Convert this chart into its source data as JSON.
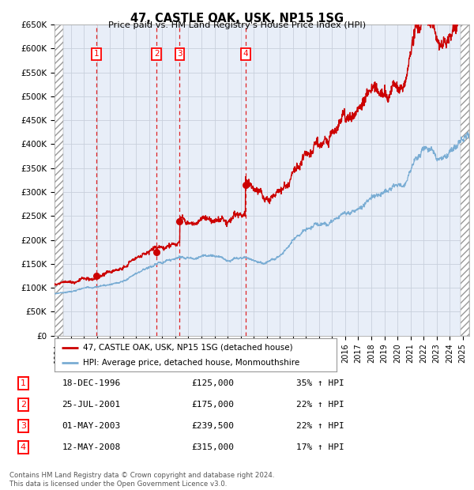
{
  "title": "47, CASTLE OAK, USK, NP15 1SG",
  "subtitle": "Price paid vs. HM Land Registry's House Price Index (HPI)",
  "legend_line1": "47, CASTLE OAK, USK, NP15 1SG (detached house)",
  "legend_line2": "HPI: Average price, detached house, Monmouthshire",
  "footer1": "Contains HM Land Registry data © Crown copyright and database right 2024.",
  "footer2": "This data is licensed under the Open Government Licence v3.0.",
  "transactions": [
    {
      "num": 1,
      "date": "18-DEC-1996",
      "price": "£125,000",
      "pct": "35% ↑ HPI"
    },
    {
      "num": 2,
      "date": "25-JUL-2001",
      "price": "£175,000",
      "pct": "22% ↑ HPI"
    },
    {
      "num": 3,
      "date": "01-MAY-2003",
      "price": "£239,500",
      "pct": "22% ↑ HPI"
    },
    {
      "num": 4,
      "date": "12-MAY-2008",
      "price": "£315,000",
      "pct": "17% ↑ HPI"
    }
  ],
  "sale_years": [
    1996.958,
    2001.56,
    2003.333,
    2008.37
  ],
  "sale_prices": [
    125000,
    175000,
    239500,
    315000
  ],
  "price_color": "#cc0000",
  "hpi_color": "#7aadd4",
  "grid_color": "#c8d0dc",
  "ylim": [
    0,
    650000
  ],
  "yticks": [
    0,
    50000,
    100000,
    150000,
    200000,
    250000,
    300000,
    350000,
    400000,
    450000,
    500000,
    550000,
    600000,
    650000
  ],
  "xlim_start": 1993.75,
  "xlim_end": 2025.5,
  "hatch_left_end": 1994.42,
  "hatch_right_start": 2024.83,
  "bg_color": "#ffffff",
  "plot_bg": "#e8eef8"
}
